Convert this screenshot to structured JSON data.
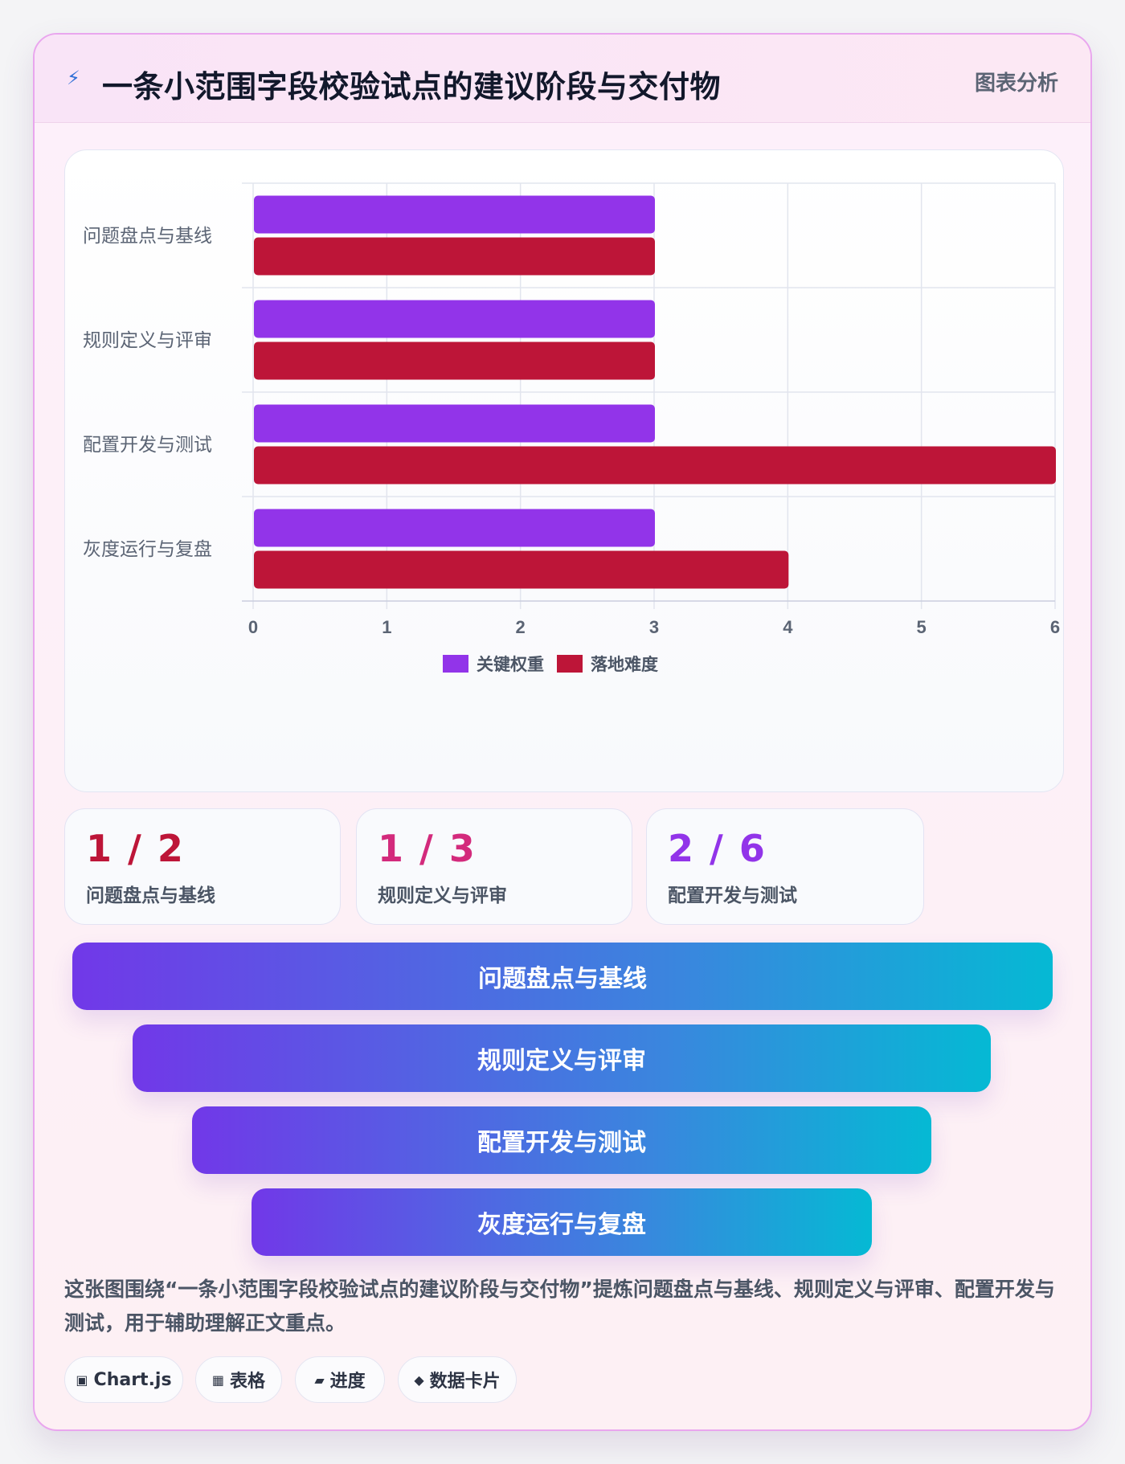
{
  "header": {
    "icon": "bolt-icon",
    "title": "一条小范围字段校验试点的建议阶段与交付物",
    "tag": "图表分析"
  },
  "chart_data": {
    "type": "bar",
    "orientation": "horizontal",
    "categories": [
      "问题盘点与基线",
      "规则定义与评审",
      "配置开发与测试",
      "灰度运行与复盘"
    ],
    "series": [
      {
        "name": "关键权重",
        "values": [
          3,
          3,
          3,
          3
        ],
        "color": "#9234e9"
      },
      {
        "name": "落地难度",
        "values": [
          3,
          3,
          6,
          4
        ],
        "color": "#bd1538"
      }
    ],
    "xlim": [
      0,
      6
    ],
    "xticks": [
      "0",
      "1",
      "2",
      "3",
      "4",
      "5",
      "6"
    ],
    "grid": true,
    "legend": "bottom-center"
  },
  "stats": [
    {
      "value": "1 / 2",
      "label": "问题盘点与基线",
      "color": "#bd1538"
    },
    {
      "value": "1 / 3",
      "label": "规则定义与评审",
      "color": "#d32a7c"
    },
    {
      "value": "2 / 6",
      "label": "配置开发与测试",
      "color": "#9234e9"
    }
  ],
  "funnel": [
    "问题盘点与基线",
    "规则定义与评审",
    "配置开发与测试",
    "灰度运行与复盘"
  ],
  "description": "这张图围绕“一条小范围字段校验试点的建议阶段与交付物”提炼问题盘点与基线、规则定义与评审、配置开发与测试，用于辅助理解正文重点。",
  "chips": [
    {
      "icon": "▣",
      "label": "Chart.js"
    },
    {
      "icon": "▦",
      "label": "表格"
    },
    {
      "icon": "▰",
      "label": "进度"
    },
    {
      "icon": "◆",
      "label": "数据卡片"
    }
  ]
}
